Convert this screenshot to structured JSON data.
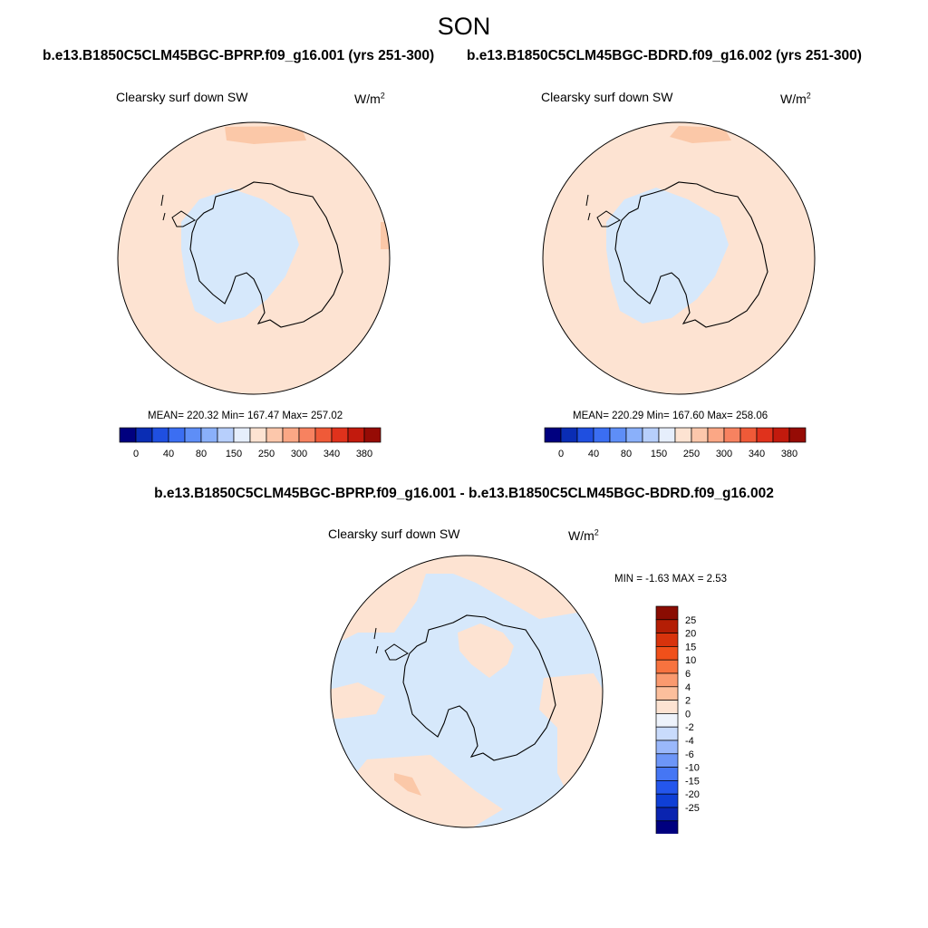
{
  "title": "SON",
  "panels": [
    {
      "case_title": "b.e13.B1850C5CLM45BGC-BPRP.f09_g16.001 (yrs 251-300)",
      "variable": "Clearsky surf down SW",
      "units_base": "W/m",
      "units_exp": "2",
      "stats": "MEAN= 220.32  Min= 167.47  Max= 257.02"
    },
    {
      "case_title": "b.e13.B1850C5CLM45BGC-BDRD.f09_g16.002 (yrs 251-300)",
      "variable": "Clearsky surf down SW",
      "units_base": "W/m",
      "units_exp": "2",
      "stats": "MEAN= 220.29  Min= 167.60  Max= 258.06"
    }
  ],
  "diff_panel": {
    "title": "b.e13.B1850C5CLM45BGC-BPRP.f09_g16.001 - b.e13.B1850C5CLM45BGC-BDRD.f09_g16.002",
    "variable": "Clearsky surf down SW",
    "units_base": "W/m",
    "units_exp": "2",
    "stats": "MIN =  -1.63 MAX =   2.53"
  },
  "abs_colorbar": {
    "colors": [
      "#00007f",
      "#0a2db4",
      "#1f4fe0",
      "#3b6ef2",
      "#5e8ef7",
      "#8ab0fa",
      "#b7cffc",
      "#e6eefc",
      "#fde3d2",
      "#fcc7ab",
      "#fba785",
      "#f78260",
      "#ef5a38",
      "#e0321c",
      "#c21a0d",
      "#960b05"
    ],
    "labels": [
      "0",
      "40",
      "80",
      "150",
      "250",
      "300",
      "340",
      "380"
    ]
  },
  "diff_colorbar": {
    "colors": [
      "#00007f",
      "#0a24b0",
      "#0f3fd6",
      "#2456ec",
      "#4576f4",
      "#6d96f8",
      "#9ab8fb",
      "#c9dbfc",
      "#eef3fb",
      "#fde3d2",
      "#fcbf9c",
      "#fa9a6f",
      "#f7733f",
      "#f0501a",
      "#d8330c",
      "#b41e05",
      "#8a0c02"
    ],
    "labels": [
      "25",
      "20",
      "15",
      "10",
      "6",
      "4",
      "2",
      "0",
      "-2",
      "-4",
      "-6",
      "-10",
      "-15",
      "-20",
      "-25"
    ]
  },
  "map_colors": {
    "ocean_fill": "#fde3d2",
    "interior_fill": "#d6e8fb",
    "warm_patch": "#fbc8a8",
    "diff_positive": "#fde3d2",
    "diff_negative": "#d6e8fb",
    "diff_strong_positive": "#fbc8a8"
  },
  "chart_data": {
    "type": "heatmap",
    "projection": "south polar stereographic",
    "season": "SON",
    "abs_contour_levels": [
      0,
      40,
      80,
      150,
      250,
      300,
      340,
      380
    ],
    "diff_contour_levels": [
      -25,
      -20,
      -15,
      -10,
      -6,
      -4,
      -2,
      0,
      2,
      4,
      6,
      10,
      15,
      20,
      25
    ],
    "panels": [
      {
        "case": "b.e13.B1850C5CLM45BGC-BPRP.f09_g16.001",
        "mean": 220.32,
        "min": 167.47,
        "max": 257.02
      },
      {
        "case": "b.e13.B1850C5CLM45BGC-BDRD.f09_g16.002",
        "mean": 220.29,
        "min": 167.6,
        "max": 258.06
      },
      {
        "case": "difference",
        "min": -1.63,
        "max": 2.53
      }
    ]
  }
}
